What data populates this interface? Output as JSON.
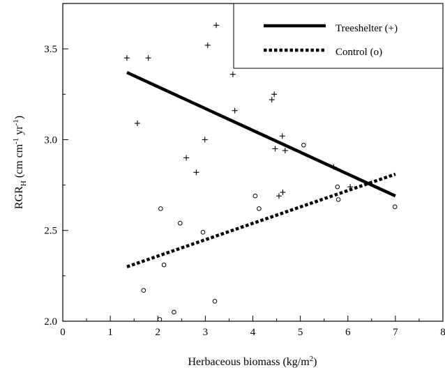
{
  "chart_data": {
    "type": "scatter",
    "xlabel": "Herbaceous biomass (kg/m",
    "xlabel_sup": "2",
    "xlabel_end": ")",
    "ylabel": {
      "base": "RGR",
      "sub": "H",
      "part1": " (cm cm",
      "sup1": "-1",
      "part2": " yr",
      "sup2": "-1",
      "part3": ")"
    },
    "xlim": [
      0,
      8
    ],
    "ylim": [
      2.0,
      3.75
    ],
    "xticks": [
      "0",
      "1",
      "2",
      "3",
      "4",
      "5",
      "6",
      "7",
      "8"
    ],
    "yticks": [
      "2.0",
      "2.5",
      "3.0",
      "3.5"
    ],
    "ytick_values": [
      2.0,
      2.5,
      3.0,
      3.5
    ],
    "legend_position": "top-right",
    "series": [
      {
        "name": "Treeshelter (+)",
        "marker": "+",
        "line_style": "solid",
        "points": [
          [
            1.35,
            3.45
          ],
          [
            1.8,
            3.45
          ],
          [
            1.57,
            3.09
          ],
          [
            3.23,
            3.63
          ],
          [
            3.05,
            3.52
          ],
          [
            3.58,
            3.36
          ],
          [
            3.62,
            3.16
          ],
          [
            4.45,
            3.25
          ],
          [
            4.4,
            3.22
          ],
          [
            2.99,
            3.0
          ],
          [
            2.6,
            2.9
          ],
          [
            2.81,
            2.82
          ],
          [
            4.62,
            3.02
          ],
          [
            4.47,
            2.95
          ],
          [
            4.68,
            2.94
          ],
          [
            4.63,
            2.71
          ],
          [
            4.55,
            2.69
          ],
          [
            5.7,
            2.85
          ],
          [
            6.05,
            2.74
          ]
        ],
        "fit": [
          [
            1.35,
            3.37
          ],
          [
            7.0,
            2.69
          ]
        ]
      },
      {
        "name": "Control (o)",
        "marker": "o",
        "line_style": "dotted",
        "points": [
          [
            2.06,
            2.62
          ],
          [
            2.47,
            2.54
          ],
          [
            2.95,
            2.49
          ],
          [
            2.13,
            2.31
          ],
          [
            1.7,
            2.17
          ],
          [
            2.34,
            2.05
          ],
          [
            2.04,
            2.01
          ],
          [
            3.2,
            2.11
          ],
          [
            4.05,
            2.69
          ],
          [
            4.13,
            2.62
          ],
          [
            5.07,
            2.97
          ],
          [
            5.78,
            2.74
          ],
          [
            5.8,
            2.67
          ],
          [
            6.99,
            2.63
          ]
        ],
        "fit": [
          [
            1.35,
            2.3
          ],
          [
            7.0,
            2.81
          ]
        ]
      }
    ]
  }
}
